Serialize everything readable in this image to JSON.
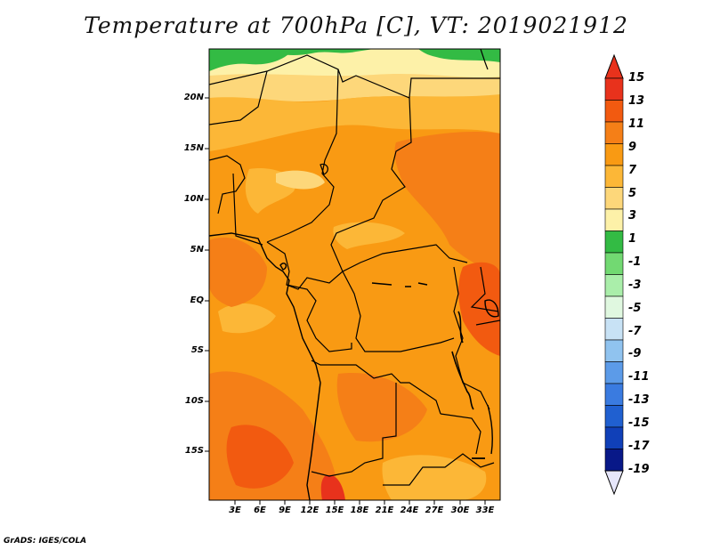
{
  "title": "Temperature at 700hPa [C], VT: 2019021912",
  "credit": "GrADS: IGES/COLA",
  "map": {
    "y_ticks": [
      "20N",
      "15N",
      "10N",
      "5N",
      "EQ",
      "5S",
      "10S",
      "15S"
    ],
    "x_ticks": [
      "3E",
      "6E",
      "9E",
      "12E",
      "15E",
      "18E",
      "21E",
      "24E",
      "27E",
      "30E",
      "33E"
    ]
  },
  "colorbar": {
    "labels": [
      "15",
      "13",
      "11",
      "9",
      "7",
      "5",
      "3",
      "1",
      "-1",
      "-3",
      "-5",
      "-7",
      "-9",
      "-11",
      "-13",
      "-15",
      "-17",
      "-19"
    ],
    "colors": [
      "#e8321c",
      "#f25a10",
      "#f57f17",
      "#f99a13",
      "#fcb737",
      "#fdd77a",
      "#fdf1a8",
      "#33bb44",
      "#72d972",
      "#aaeeaa",
      "#e0f8e0",
      "#c8e2f5",
      "#90c3ef",
      "#5c9be8",
      "#3a7be0",
      "#2060d0",
      "#1040b8",
      "#081888"
    ],
    "low_arrow_color": "#e6e6fa",
    "high_arrow_color": "#e8321c"
  }
}
